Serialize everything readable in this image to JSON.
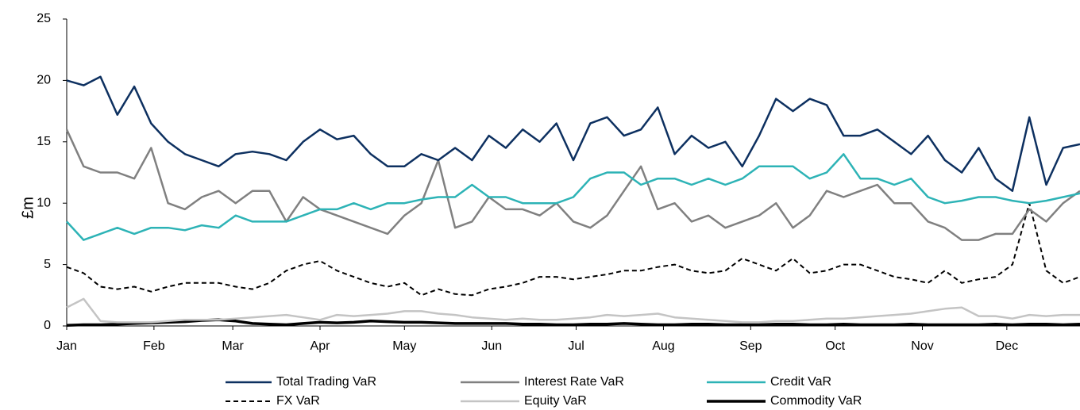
{
  "chart_data": {
    "type": "line",
    "y_label": "£m",
    "x": [
      0,
      6,
      12,
      18,
      24,
      30,
      36,
      42,
      48,
      54,
      60,
      66,
      72,
      78,
      84,
      90,
      96,
      102,
      108,
      114,
      120,
      126,
      132,
      138,
      144,
      150,
      156,
      162,
      168,
      174,
      180,
      186,
      192,
      198,
      204,
      210,
      216,
      222,
      228,
      234,
      240,
      246,
      252,
      258,
      264,
      270,
      276,
      282,
      288,
      294,
      300,
      306,
      312,
      318,
      324,
      330,
      336,
      342,
      348,
      354,
      360
    ],
    "xlim": [
      0,
      360
    ],
    "xticks": [
      {
        "value": 0,
        "label": "Jan"
      },
      {
        "value": 31,
        "label": "Feb"
      },
      {
        "value": 59,
        "label": "Mar"
      },
      {
        "value": 90,
        "label": "Apr"
      },
      {
        "value": 120,
        "label": "May"
      },
      {
        "value": 151,
        "label": "Jun"
      },
      {
        "value": 181,
        "label": "Jul"
      },
      {
        "value": 212,
        "label": "Aug"
      },
      {
        "value": 243,
        "label": "Sep"
      },
      {
        "value": 273,
        "label": "Oct"
      },
      {
        "value": 304,
        "label": "Nov"
      },
      {
        "value": 334,
        "label": "Dec"
      }
    ],
    "ylim": [
      0,
      25
    ],
    "yticks": [
      0,
      5,
      10,
      15,
      20,
      25
    ],
    "grid": false,
    "legend": "bottom",
    "series": [
      {
        "name": "Total Trading VaR",
        "color": "#0d3060",
        "linestyle": "solid",
        "linewidth": 2.5,
        "values": [
          20,
          19.6,
          20.3,
          17.2,
          19.5,
          16.5,
          15,
          14,
          13.5,
          13,
          14,
          14.2,
          14,
          13.5,
          15,
          16,
          15.2,
          15.5,
          14,
          13,
          13,
          14,
          13.5,
          14.5,
          13.5,
          15.5,
          14.5,
          16,
          15,
          16.5,
          13.5,
          16.5,
          17,
          15.5,
          16,
          17.8,
          14,
          15.5,
          14.5,
          15,
          13,
          15.5,
          18.5,
          17.5,
          18.5,
          18,
          15.5,
          15.5,
          16,
          15,
          14,
          15.5,
          13.5,
          12.5,
          14.5,
          12,
          11,
          17,
          11.5,
          14.5,
          14.8
        ]
      },
      {
        "name": "Interest Rate VaR",
        "color": "#808080",
        "linestyle": "solid",
        "linewidth": 2.5,
        "values": [
          16,
          13,
          12.5,
          12.5,
          12,
          14.5,
          10,
          9.5,
          10.5,
          11,
          10,
          11,
          11,
          8.5,
          10.5,
          9.5,
          9,
          8.5,
          8,
          7.5,
          9,
          10,
          13.5,
          8,
          8.5,
          10.5,
          9.5,
          9.5,
          9,
          10,
          8.5,
          8,
          9,
          11,
          13,
          9.5,
          10,
          8.5,
          9,
          8,
          8.5,
          9,
          10,
          8,
          9,
          11,
          10.5,
          11,
          11.5,
          10,
          10,
          8.5,
          8,
          7,
          7,
          7.5,
          7.5,
          9.5,
          8.5,
          10,
          11
        ]
      },
      {
        "name": "Credit VaR",
        "color": "#2db3b6",
        "linestyle": "solid",
        "linewidth": 2.5,
        "values": [
          8.5,
          7,
          7.5,
          8,
          7.5,
          8,
          8,
          7.8,
          8.2,
          8,
          9,
          8.5,
          8.5,
          8.5,
          9,
          9.5,
          9.5,
          10,
          9.5,
          10,
          10,
          10.3,
          10.5,
          10.5,
          11.5,
          10.5,
          10.5,
          10,
          10,
          10,
          10.5,
          12,
          12.5,
          12.5,
          11.5,
          12,
          12,
          11.5,
          12,
          11.5,
          12,
          13,
          13,
          13,
          12,
          12.5,
          14,
          12,
          12,
          11.5,
          12,
          10.5,
          10,
          10.2,
          10.5,
          10.5,
          10.2,
          10,
          10.2,
          10.5,
          10.8
        ]
      },
      {
        "name": "FX VaR",
        "color": "#000000",
        "linestyle": "dashed",
        "linewidth": 2,
        "values": [
          4.8,
          4.3,
          3.2,
          3,
          3.2,
          2.8,
          3.2,
          3.5,
          3.5,
          3.5,
          3.2,
          3,
          3.5,
          4.5,
          5,
          5.3,
          4.5,
          4,
          3.5,
          3.2,
          3.5,
          2.5,
          3,
          2.6,
          2.5,
          3,
          3.2,
          3.5,
          4,
          4,
          3.8,
          4,
          4.2,
          4.5,
          4.5,
          4.8,
          5,
          4.5,
          4.3,
          4.5,
          5.5,
          5,
          4.5,
          5.5,
          4.3,
          4.5,
          5,
          5,
          4.5,
          4,
          3.8,
          3.5,
          4.5,
          3.5,
          3.8,
          4,
          5,
          10,
          4.5,
          3.5,
          4
        ]
      },
      {
        "name": "Equity VaR",
        "color": "#c4c4c4",
        "linestyle": "solid",
        "linewidth": 2.5,
        "values": [
          1.5,
          2.2,
          0.4,
          0.3,
          0.3,
          0.3,
          0.4,
          0.5,
          0.5,
          0.5,
          0.6,
          0.7,
          0.8,
          0.9,
          0.7,
          0.5,
          0.9,
          0.8,
          0.9,
          1,
          1.2,
          1.2,
          1,
          0.9,
          0.7,
          0.6,
          0.5,
          0.6,
          0.5,
          0.5,
          0.6,
          0.7,
          0.9,
          0.8,
          0.9,
          1,
          0.7,
          0.6,
          0.5,
          0.4,
          0.3,
          0.3,
          0.4,
          0.4,
          0.5,
          0.6,
          0.6,
          0.7,
          0.8,
          0.9,
          1,
          1.2,
          1.4,
          1.5,
          0.8,
          0.8,
          0.6,
          0.9,
          0.8,
          0.9,
          0.9
        ]
      },
      {
        "name": "Commodity VaR",
        "color": "#000000",
        "linestyle": "solid",
        "linewidth": 3.5,
        "values": [
          0.05,
          0.1,
          0.1,
          0.15,
          0.2,
          0.25,
          0.3,
          0.35,
          0.45,
          0.5,
          0.4,
          0.2,
          0.15,
          0.1,
          0.2,
          0.3,
          0.25,
          0.3,
          0.4,
          0.35,
          0.3,
          0.3,
          0.25,
          0.2,
          0.2,
          0.2,
          0.2,
          0.15,
          0.15,
          0.1,
          0.1,
          0.15,
          0.15,
          0.2,
          0.15,
          0.1,
          0.1,
          0.15,
          0.15,
          0.1,
          0.1,
          0.1,
          0.15,
          0.15,
          0.1,
          0.1,
          0.15,
          0.1,
          0.1,
          0.1,
          0.15,
          0.1,
          0.1,
          0.1,
          0.1,
          0.15,
          0.1,
          0.15,
          0.15,
          0.1,
          0.15
        ]
      }
    ]
  }
}
